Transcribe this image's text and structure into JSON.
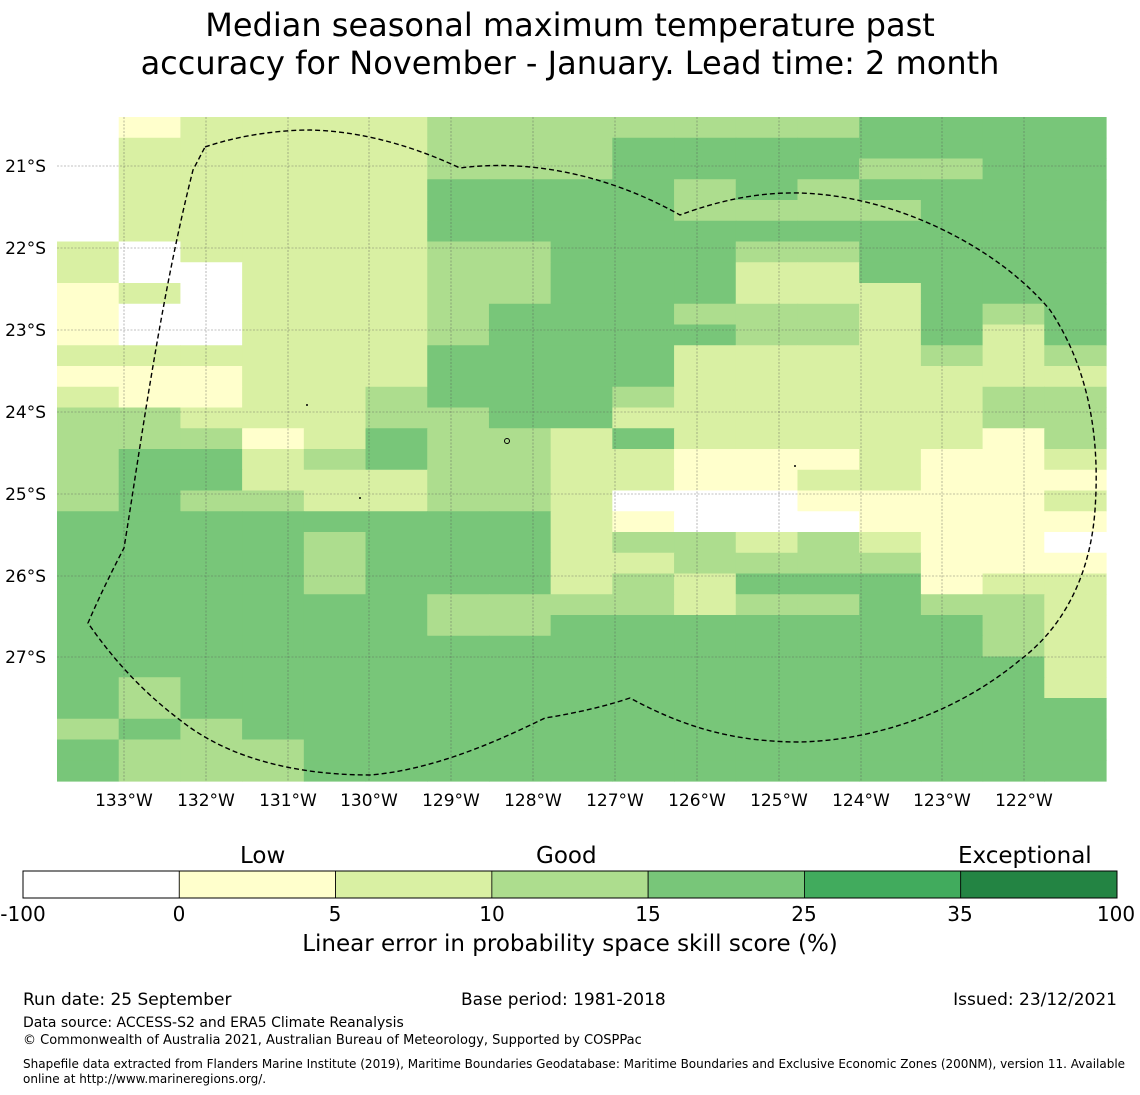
{
  "title": {
    "line1": "Median seasonal maximum temperature past",
    "line2": "accuracy for November - January. Lead time: 2 month"
  },
  "map": {
    "lon_labels": [
      "133°W",
      "132°W",
      "131°W",
      "130°W",
      "129°W",
      "128°W",
      "127°W",
      "126°W",
      "125°W",
      "124°W",
      "123°W",
      "122°W"
    ],
    "lat_labels": [
      "21°S",
      "22°S",
      "23°S",
      "24°S",
      "25°S",
      "26°S",
      "27°S"
    ],
    "colors": [
      "#ffffff",
      "#ffffcc",
      "#d9f0a3",
      "#addd8e",
      "#78c679",
      "#41ab5d",
      "#238443"
    ],
    "grid_codes": [
      "01222233333334444",
      "02222233344444444",
      "02222233344443344",
      "02222244443434444",
      "02222244443333444",
      "02222244444444444",
      "20222233444334444",
      "20022233444224444",
      "12022233444222444",
      "10022234443332434",
      "10022234444332424",
      "22222244442222323",
      "11122244442222222",
      "21122344432222233",
      "33222334422222233",
      "33312433242222213",
      "34423433221112112",
      "34422233221122111",
      "34332233200011112",
      "44444444210001111",
      "44443444233232110",
      "44443444223333111",
      "44443444232444122",
      "44444433332334332",
      "44444433444444432",
      "44444444444444432",
      "44444444444444442",
      "43444444444444442",
      "43444444444444444",
      "34344444444444444",
      "43334444444444444",
      "43334444444444444"
    ]
  },
  "colorbar": {
    "category_labels": [
      "Low",
      "Good",
      "Exceptional"
    ],
    "ticks": [
      "-100",
      "0",
      "5",
      "10",
      "15",
      "25",
      "35",
      "100"
    ],
    "title": "Linear error in probability space skill score (%)"
  },
  "footer": {
    "run_date": "Run date: 25 September",
    "base_period": "Base period: 1981-2018",
    "issued": "Issued: 23/12/2021",
    "data_source": "Data source: ACCESS-S2 and ERA5 Climate Reanalysis",
    "copyright": "© Commonwealth of Australia 2021, Australian Bureau of Meteorology, Supported by COSPPac",
    "shapefile_line1": "Shapefile data extracted from Flanders Marine Institute (2019), Maritime Boundaries Geodatabase: Maritime Boundaries and Exclusive Economic Zones (200NM), version 11. Available",
    "shapefile_line2": "online at http://www.marineregions.org/."
  }
}
